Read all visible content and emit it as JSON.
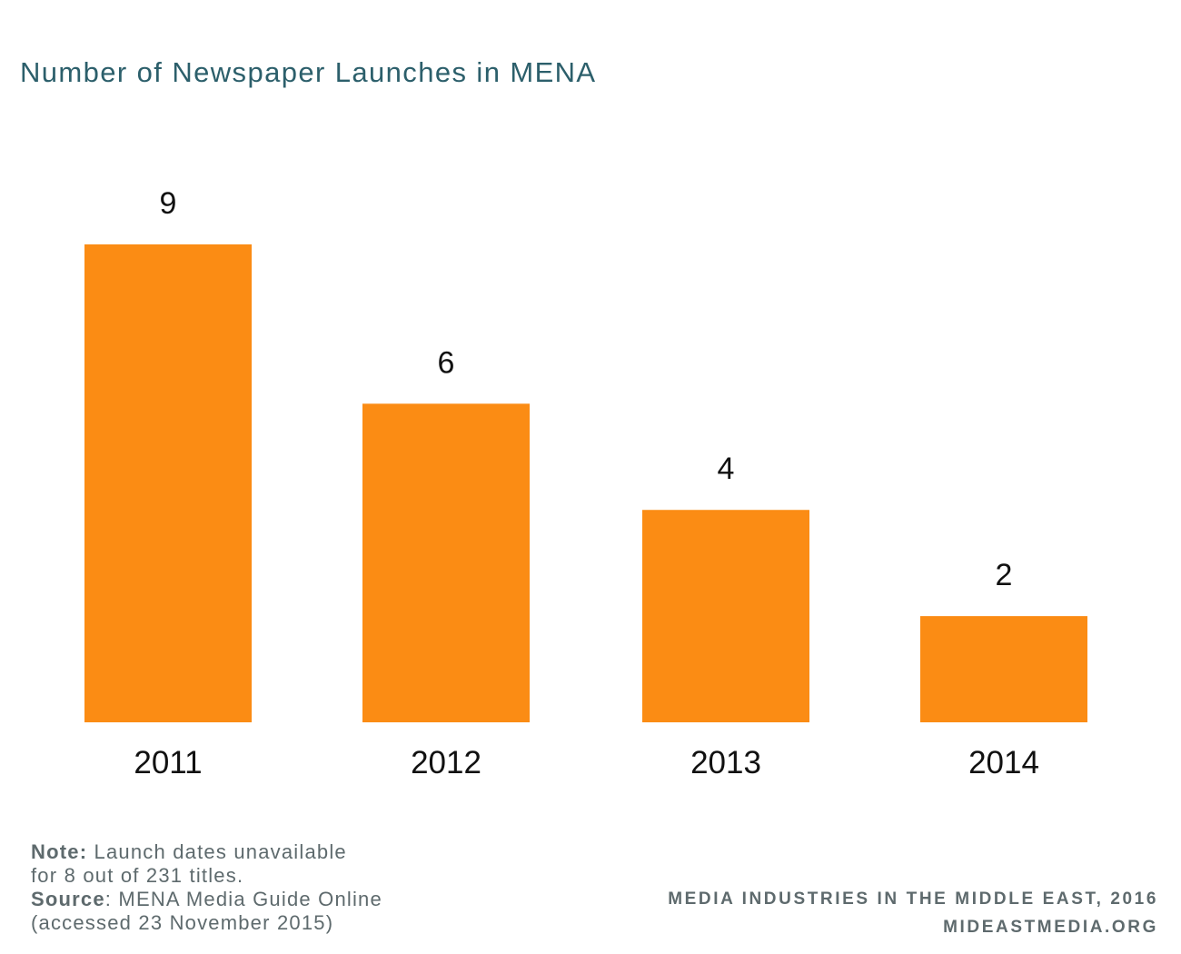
{
  "chart_data": {
    "type": "bar",
    "title": "Number of Newspaper Launches in MENA",
    "categories": [
      "2011",
      "2012",
      "2013",
      "2014"
    ],
    "values": [
      9,
      6,
      4,
      2
    ],
    "data_labels": [
      "9",
      "6",
      "4",
      "2"
    ],
    "bar_color": "#fb8c14",
    "xlabel": "",
    "ylabel": "",
    "ylim": [
      0,
      9
    ],
    "grid": false,
    "legend": "none"
  },
  "notes": {
    "note_label": "Note:",
    "note_line1": " Launch dates unavailable",
    "note_line2": "for 8 out of 231 titles.",
    "source_label": "Source",
    "source_text": ": MENA Media Guide Online",
    "source_line2": "(accessed 23 November 2015)"
  },
  "credits": {
    "publication": "MEDIA INDUSTRIES IN THE MIDDLE EAST, 2016",
    "website": "MIDEASTMEDIA.ORG"
  },
  "colors": {
    "title": "#2c5f6b",
    "footnote": "#5e6a6d",
    "bar": "#fb8c14"
  }
}
